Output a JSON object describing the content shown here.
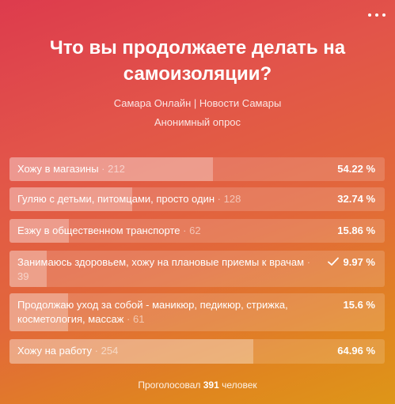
{
  "poll": {
    "title": "Что вы продолжаете делать на самоизоляции?",
    "author": "Самара Онлайн | Новости Самары",
    "type": "Анонимный опрос",
    "options": [
      {
        "label": "Хожу в магазины",
        "count": "212",
        "percent": "54.22 %",
        "fill": 0.5422,
        "voted": false
      },
      {
        "label": "Гуляю с детьми, питомцами, просто один",
        "count": "128",
        "percent": "32.74 %",
        "fill": 0.3274,
        "voted": false
      },
      {
        "label": "Езжу в общественном транспорте",
        "count": "62",
        "percent": "15.86 %",
        "fill": 0.1586,
        "voted": false
      },
      {
        "label": "Занимаюсь здоровьем, хожу на плановые приемы к врачам",
        "count": "39",
        "percent": "9.97 %",
        "fill": 0.0997,
        "voted": true
      },
      {
        "label": "Продолжаю уход за собой - маникюр, педикюр, стрижка, косметология, массаж",
        "count": "61",
        "percent": "15.6 %",
        "fill": 0.156,
        "voted": false
      },
      {
        "label": "Хожу на работу",
        "count": "254",
        "percent": "64.96 %",
        "fill": 0.6496,
        "voted": false
      }
    ],
    "footer_prefix": "Проголосовал",
    "total_votes": "391",
    "footer_suffix": "человек",
    "count_separator": "·"
  },
  "icons": {
    "menu": "more-horizontal-icon",
    "voted": "check-icon"
  }
}
